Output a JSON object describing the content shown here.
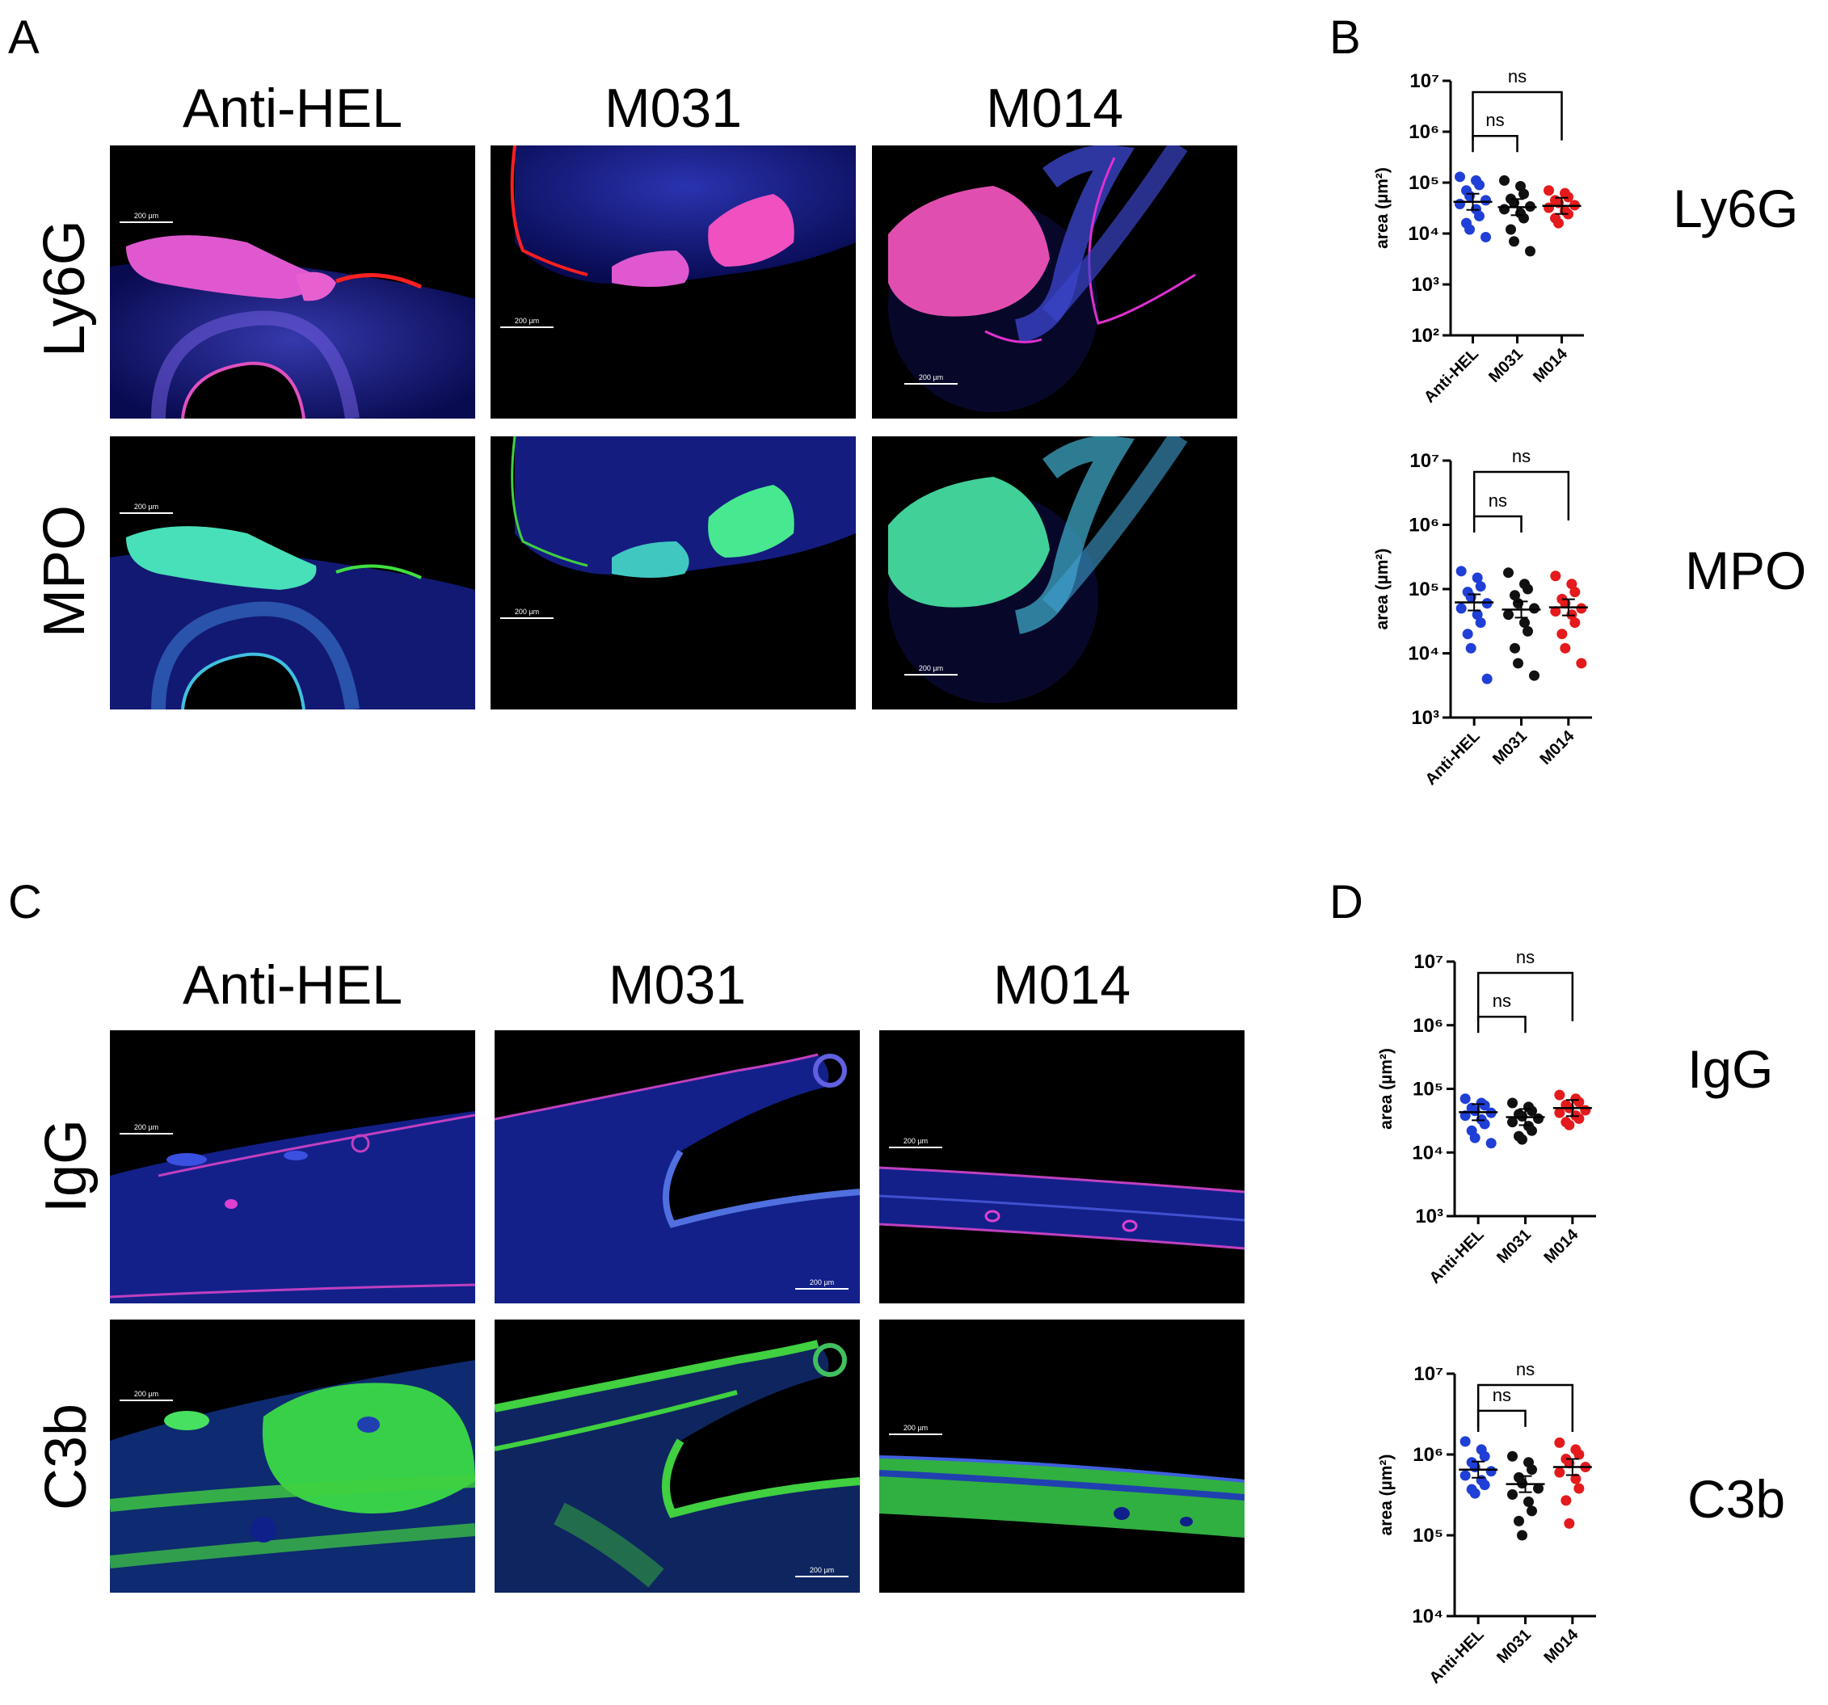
{
  "panel_letters": {
    "A": "A",
    "B": "B",
    "C": "C",
    "D": "D"
  },
  "panel_a": {
    "columns": [
      "Anti-HEL",
      "M031",
      "M014"
    ],
    "rows": [
      "Ly6G",
      "MPO"
    ],
    "scale_bar": "200 µm"
  },
  "panel_c": {
    "columns": [
      "Anti-HEL",
      "M031",
      "M014"
    ],
    "rows": [
      "IgG",
      "C3b"
    ],
    "scale_bar": "200 µm"
  },
  "marker_labels": {
    "ly6g": "Ly6G",
    "mpo": "MPO",
    "igg": "IgG",
    "c3b": "C3b"
  },
  "colors": {
    "anti_hel": "#1f3fd6",
    "m031": "#111111",
    "m014": "#e41a1c"
  },
  "chart_data": [
    {
      "id": "ly6g",
      "type": "scatter",
      "scale": "log",
      "ylabel": "area (µm²)",
      "ylim_exp": [
        2,
        7
      ],
      "categories": [
        "Anti-HEL",
        "M031",
        "M014"
      ],
      "series": [
        {
          "values": [
            130000,
            110000,
            90000,
            70000,
            55000,
            45000,
            38000,
            30000,
            22000,
            16000,
            12000,
            8500
          ]
        },
        {
          "values": [
            110000,
            85000,
            60000,
            48000,
            40000,
            34000,
            30000,
            25000,
            20000,
            12000,
            7000,
            4500
          ]
        },
        {
          "values": [
            70000,
            62000,
            52000,
            45000,
            40000,
            36000,
            32000,
            28000,
            24000,
            20000,
            16000
          ]
        }
      ],
      "means": [
        42000,
        33000,
        35000
      ],
      "brackets": [
        {
          "from": "Anti-HEL",
          "to": "M031",
          "label": "ns"
        },
        {
          "from": "Anti-HEL",
          "to": "M014",
          "label": "ns"
        }
      ]
    },
    {
      "id": "mpo",
      "type": "scatter",
      "scale": "log",
      "ylabel": "area (µm²)",
      "ylim_exp": [
        3,
        7
      ],
      "categories": [
        "Anti-HEL",
        "M031",
        "M014"
      ],
      "series": [
        {
          "values": [
            190000,
            150000,
            110000,
            90000,
            75000,
            60000,
            50000,
            40000,
            30000,
            20000,
            12000,
            4000
          ]
        },
        {
          "values": [
            180000,
            120000,
            100000,
            80000,
            60000,
            50000,
            40000,
            30000,
            22000,
            12000,
            7000,
            4500
          ]
        },
        {
          "values": [
            160000,
            120000,
            90000,
            70000,
            60000,
            50000,
            45000,
            40000,
            30000,
            20000,
            12000,
            7000
          ]
        }
      ],
      "means": [
        62000,
        48000,
        52000
      ],
      "brackets": [
        {
          "from": "Anti-HEL",
          "to": "M031",
          "label": "ns"
        },
        {
          "from": "Anti-HEL",
          "to": "M014",
          "label": "ns"
        }
      ]
    },
    {
      "id": "igg",
      "type": "scatter",
      "scale": "log",
      "ylabel": "area (µm²)",
      "ylim_exp": [
        3,
        7
      ],
      "categories": [
        "Anti-HEL",
        "M031",
        "M014"
      ],
      "series": [
        {
          "values": [
            70000,
            60000,
            55000,
            50000,
            45000,
            42000,
            38000,
            33000,
            28000,
            22000,
            17000,
            14000
          ]
        },
        {
          "values": [
            60000,
            52000,
            45000,
            40000,
            37000,
            34000,
            30000,
            26000,
            22000,
            18000,
            16000
          ]
        },
        {
          "values": [
            80000,
            70000,
            62000,
            56000,
            50000,
            46000,
            42000,
            38000,
            34000,
            30000,
            27000
          ]
        }
      ],
      "means": [
        43000,
        36000,
        50000
      ],
      "brackets": [
        {
          "from": "Anti-HEL",
          "to": "M031",
          "label": "ns"
        },
        {
          "from": "Anti-HEL",
          "to": "M014",
          "label": "ns"
        }
      ]
    },
    {
      "id": "c3b",
      "type": "scatter",
      "scale": "log",
      "ylabel": "area (µm²)",
      "ylim_exp": [
        4,
        7
      ],
      "categories": [
        "Anti-HEL",
        "M031",
        "M014"
      ],
      "series": [
        {
          "values": [
            1450000,
            1150000,
            950000,
            800000,
            700000,
            620000,
            550000,
            480000,
            420000,
            370000,
            330000
          ]
        },
        {
          "values": [
            950000,
            800000,
            650000,
            520000,
            440000,
            380000,
            320000,
            260000,
            200000,
            150000,
            100000
          ]
        },
        {
          "values": [
            1400000,
            1150000,
            1000000,
            880000,
            780000,
            700000,
            600000,
            500000,
            380000,
            270000,
            140000
          ]
        }
      ],
      "means": [
        650000,
        430000,
        700000
      ],
      "brackets": [
        {
          "from": "Anti-HEL",
          "to": "M031",
          "label": "ns"
        },
        {
          "from": "Anti-HEL",
          "to": "M014",
          "label": "ns"
        }
      ]
    }
  ]
}
